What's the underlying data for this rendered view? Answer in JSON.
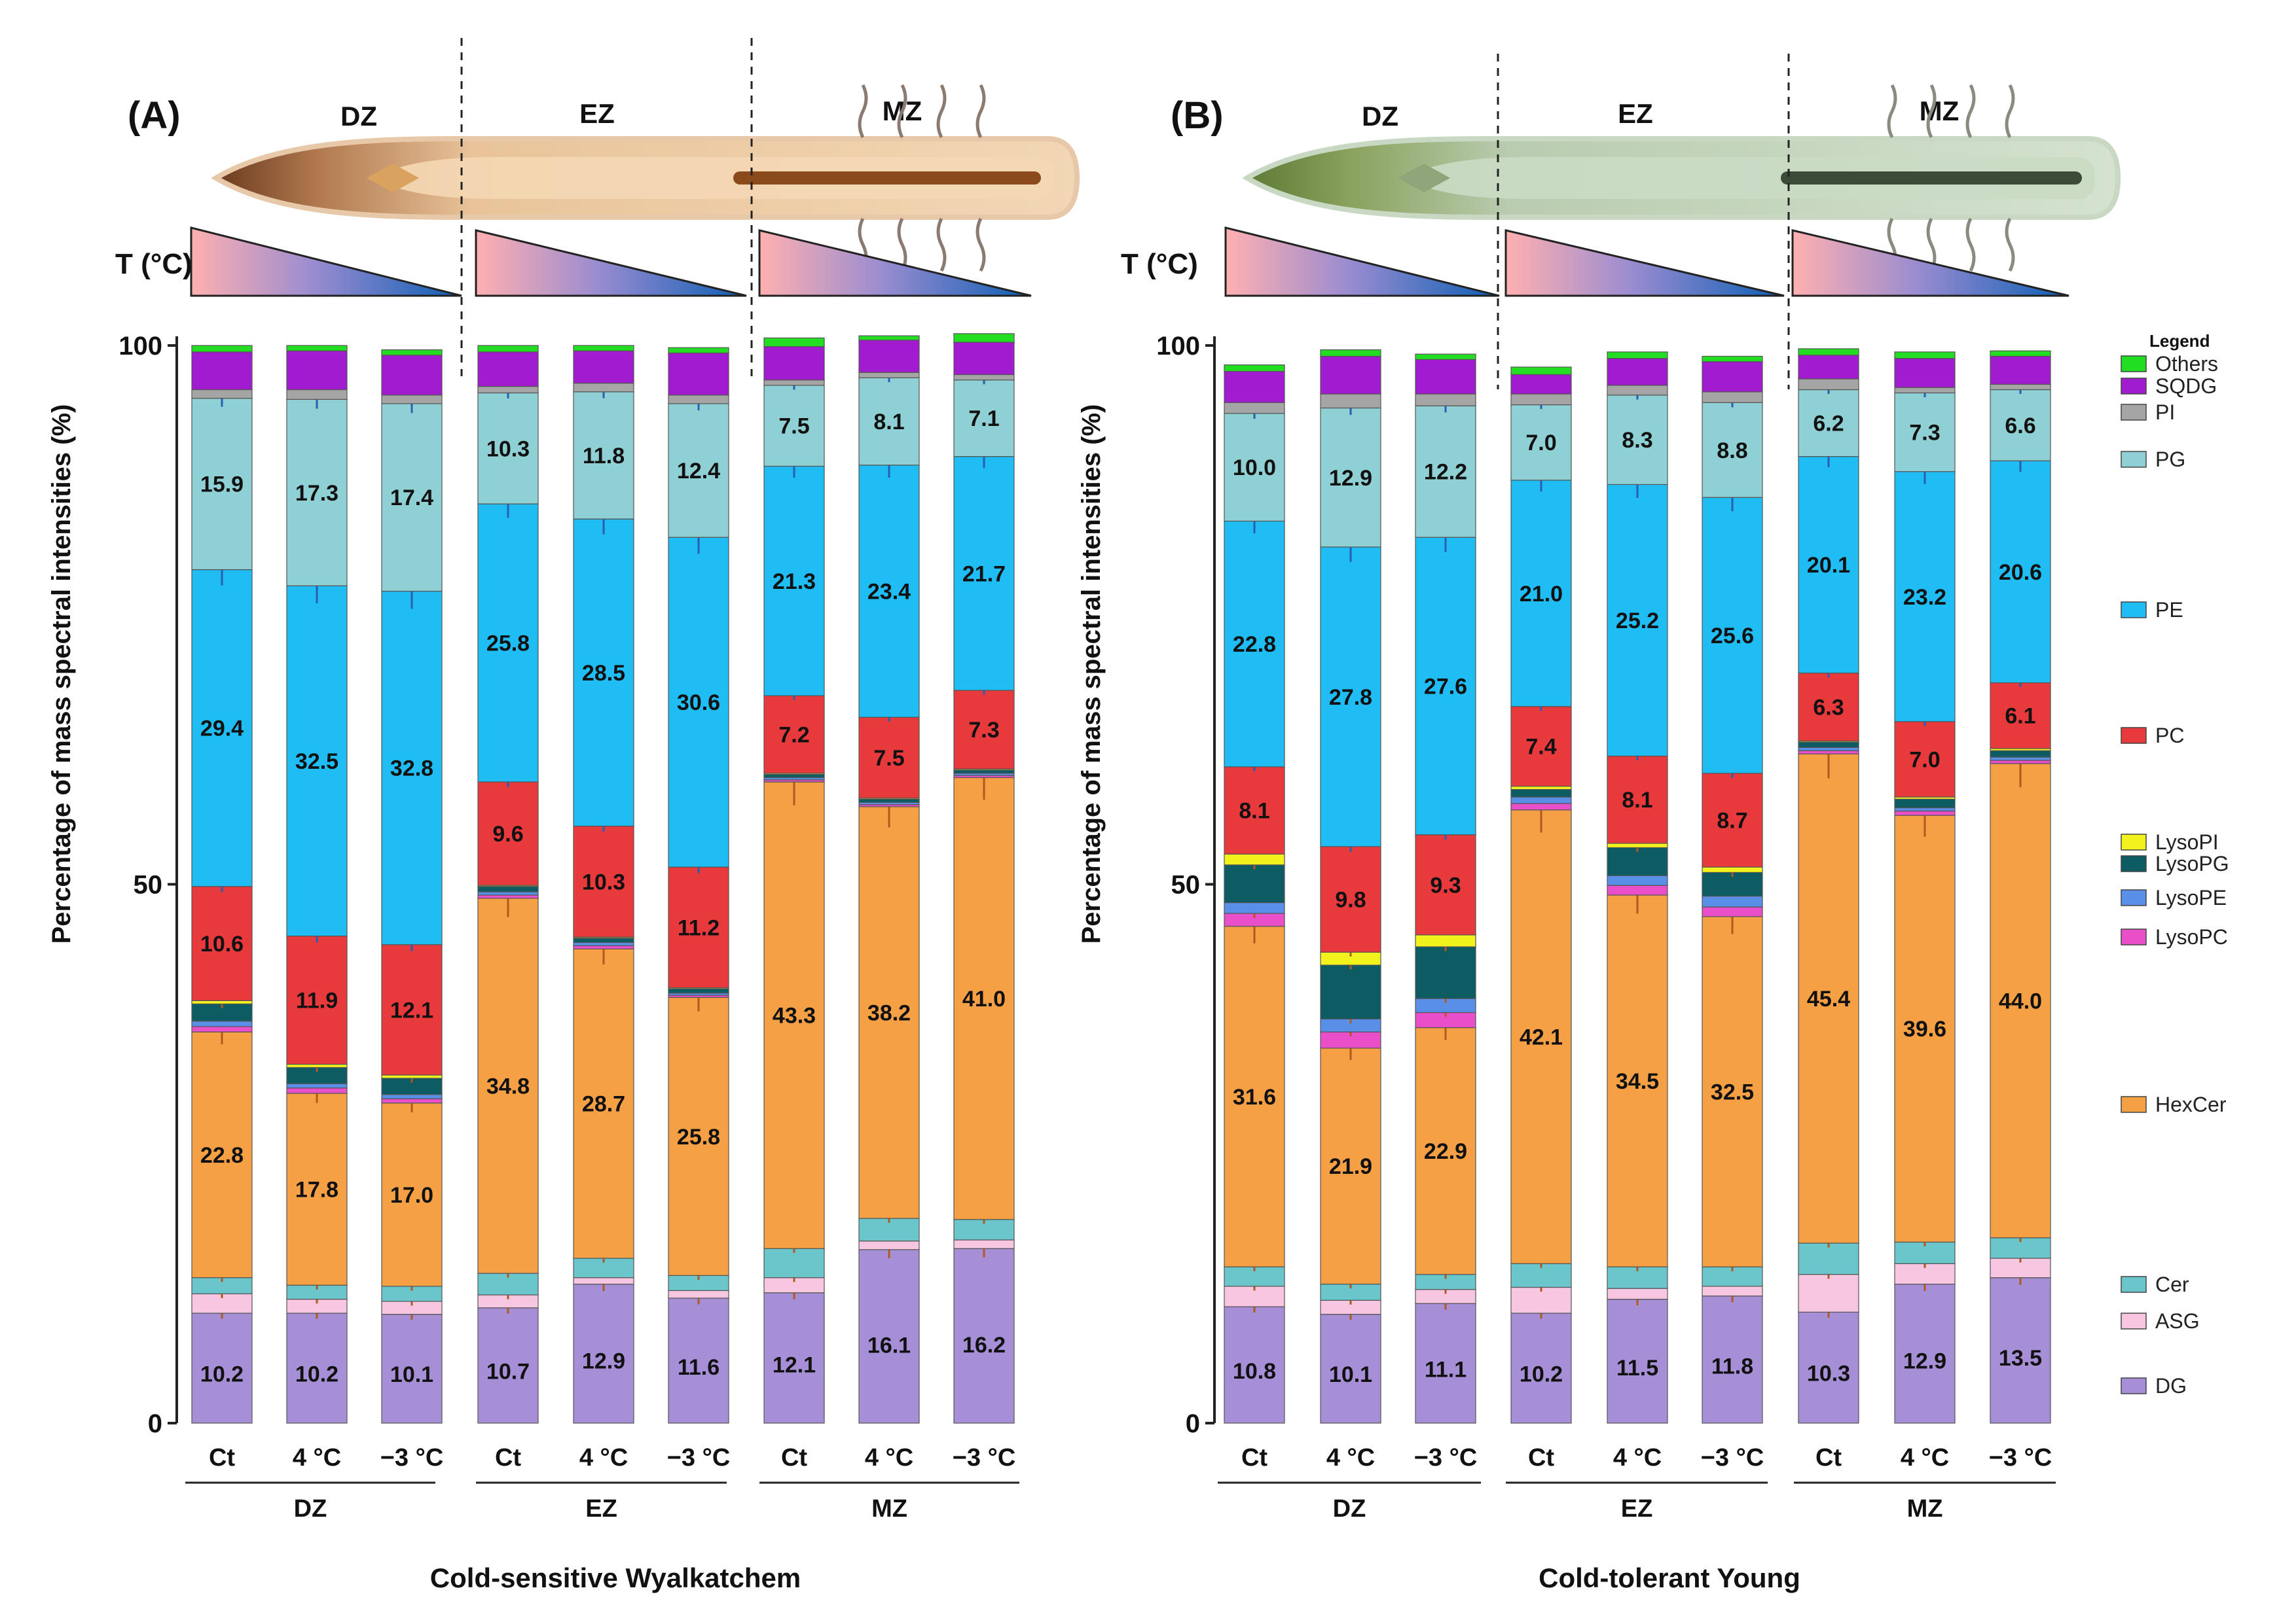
{
  "figure": {
    "y_axis_label": "Percentage of mass spectral intensities (%)",
    "legend_title": "Legend",
    "temperature_label": "T (°C)"
  },
  "colors": {
    "DG": "#a68fd6",
    "ASG": "#f7c6e0",
    "Cer": "#6bc6cc",
    "HexCer": "#f5a044",
    "LysoPC": "#e94fc9",
    "LysoPE": "#5a8fe8",
    "LysoPG": "#0d5b63",
    "LysoPI": "#f2f21c",
    "PC": "#e8393c",
    "PE": "#20bdf5",
    "PG": "#8fd0d4",
    "PI": "#a5a5a5",
    "SQDG": "#a11ccf",
    "Others": "#22dd22",
    "errorbar_light": "#2a5fb0",
    "errorbar_dark": "#b05a1e"
  },
  "legend": [
    {
      "key": "Others",
      "label": "Others"
    },
    {
      "key": "SQDG",
      "label": "SQDG"
    },
    {
      "key": "PI",
      "label": "PI"
    },
    {
      "key": "PG",
      "label": "PG"
    },
    {
      "key": "PE",
      "label": "PE"
    },
    {
      "key": "PC",
      "label": "PC"
    },
    {
      "key": "LysoPI",
      "label": "LysoPI"
    },
    {
      "key": "LysoPG",
      "label": "LysoPG"
    },
    {
      "key": "LysoPE",
      "label": "LysoPE"
    },
    {
      "key": "LysoPC",
      "label": "LysoPC"
    },
    {
      "key": "HexCer",
      "label": "HexCer"
    },
    {
      "key": "Cer",
      "label": "Cer"
    },
    {
      "key": "ASG",
      "label": "ASG"
    },
    {
      "key": "DG",
      "label": "DG"
    }
  ],
  "chart_data": [
    {
      "type": "bar",
      "stacked": true,
      "panel_label": "(A)",
      "subtitle": "Cold-sensitive Wyalkatchem",
      "ylabel": "Percentage of mass spectral intensities (%)",
      "ylim": [
        0,
        100
      ],
      "yticks": [
        "0",
        "50",
        "100"
      ],
      "zones": [
        "DZ",
        "EZ",
        "MZ"
      ],
      "categories": [
        "Ct",
        "4 °C",
        "−3 °C",
        "Ct",
        "4 °C",
        "−3 °C",
        "Ct",
        "4 °C",
        "−3 °C"
      ],
      "series": [
        {
          "name": "DG",
          "values": [
            10.2,
            10.2,
            10.1,
            10.7,
            12.9,
            11.6,
            12.1,
            16.1,
            16.2
          ]
        },
        {
          "name": "ASG",
          "values": [
            1.8,
            1.3,
            1.2,
            1.2,
            0.6,
            0.7,
            1.4,
            0.8,
            0.8
          ]
        },
        {
          "name": "Cer",
          "values": [
            1.5,
            1.3,
            1.4,
            2.0,
            1.8,
            1.4,
            2.7,
            2.1,
            1.9
          ]
        },
        {
          "name": "HexCer",
          "values": [
            22.8,
            17.8,
            17.0,
            34.8,
            28.7,
            25.8,
            43.3,
            38.2,
            41.0
          ]
        },
        {
          "name": "LysoPC",
          "values": [
            0.5,
            0.5,
            0.4,
            0.3,
            0.3,
            0.2,
            0.2,
            0.2,
            0.2
          ]
        },
        {
          "name": "LysoPE",
          "values": [
            0.5,
            0.4,
            0.4,
            0.3,
            0.3,
            0.2,
            0.2,
            0.2,
            0.2
          ]
        },
        {
          "name": "LysoPG",
          "values": [
            1.6,
            1.5,
            1.5,
            0.5,
            0.4,
            0.4,
            0.3,
            0.3,
            0.3
          ]
        },
        {
          "name": "LysoPI",
          "values": [
            0.3,
            0.3,
            0.3,
            0.1,
            0.1,
            0.1,
            0.1,
            0.1,
            0.1
          ]
        },
        {
          "name": "PC",
          "values": [
            10.6,
            11.9,
            12.1,
            9.6,
            10.3,
            11.2,
            7.2,
            7.5,
            7.3
          ]
        },
        {
          "name": "PE",
          "values": [
            29.4,
            32.5,
            32.8,
            25.8,
            28.5,
            30.6,
            21.3,
            23.4,
            21.7
          ]
        },
        {
          "name": "PG",
          "values": [
            15.9,
            17.3,
            17.4,
            10.3,
            11.8,
            12.4,
            7.5,
            8.1,
            7.1
          ]
        },
        {
          "name": "PI",
          "values": [
            0.8,
            0.9,
            0.8,
            0.6,
            0.8,
            0.8,
            0.5,
            0.5,
            0.5
          ]
        },
        {
          "name": "SQDG",
          "values": [
            3.5,
            3.6,
            3.7,
            3.2,
            3.0,
            3.9,
            3.1,
            3.0,
            3.0
          ]
        },
        {
          "name": "Others",
          "values": [
            0.6,
            0.5,
            0.5,
            0.6,
            0.5,
            0.5,
            0.8,
            0.4,
            0.8
          ]
        }
      ],
      "value_labels": [
        "DG",
        "HexCer",
        "PC",
        "PE",
        "PG"
      ]
    },
    {
      "type": "bar",
      "stacked": true,
      "panel_label": "(B)",
      "subtitle": "Cold-tolerant Young",
      "ylabel": "Percentage of mass spectral intensities (%)",
      "ylim": [
        0,
        100
      ],
      "yticks": [
        "0",
        "50",
        "100"
      ],
      "zones": [
        "DZ",
        "EZ",
        "MZ"
      ],
      "categories": [
        "Ct",
        "4 °C",
        "−3 °C",
        "Ct",
        "4 °C",
        "−3 °C",
        "Ct",
        "4 °C",
        "−3 °C"
      ],
      "series": [
        {
          "name": "DG",
          "values": [
            10.8,
            10.1,
            11.1,
            10.2,
            11.5,
            11.8,
            10.3,
            12.9,
            13.5
          ]
        },
        {
          "name": "ASG",
          "values": [
            1.9,
            1.3,
            1.3,
            2.4,
            1.0,
            0.9,
            3.5,
            1.9,
            1.8
          ]
        },
        {
          "name": "Cer",
          "values": [
            1.8,
            1.5,
            1.4,
            2.2,
            2.0,
            1.8,
            2.9,
            2.0,
            1.9
          ]
        },
        {
          "name": "HexCer",
          "values": [
            31.6,
            21.9,
            22.9,
            42.1,
            34.5,
            32.5,
            45.4,
            39.6,
            44.0
          ]
        },
        {
          "name": "LysoPC",
          "values": [
            1.2,
            1.5,
            1.4,
            0.6,
            0.9,
            0.9,
            0.3,
            0.4,
            0.3
          ]
        },
        {
          "name": "LysoPE",
          "values": [
            1.0,
            1.2,
            1.3,
            0.6,
            0.9,
            1.0,
            0.3,
            0.3,
            0.3
          ]
        },
        {
          "name": "LysoPG",
          "values": [
            3.5,
            5.0,
            4.8,
            0.7,
            2.6,
            2.2,
            0.5,
            0.8,
            0.6
          ]
        },
        {
          "name": "LysoPI",
          "values": [
            1.0,
            1.2,
            1.1,
            0.3,
            0.4,
            0.5,
            0.1,
            0.2,
            0.2
          ]
        },
        {
          "name": "PC",
          "values": [
            8.1,
            9.8,
            9.3,
            7.4,
            8.1,
            8.7,
            6.3,
            7.0,
            6.1
          ]
        },
        {
          "name": "PE",
          "values": [
            22.8,
            27.8,
            27.6,
            21.0,
            25.2,
            25.6,
            20.1,
            23.2,
            20.6
          ]
        },
        {
          "name": "PG",
          "values": [
            10.0,
            12.9,
            12.2,
            7.0,
            8.3,
            8.8,
            6.2,
            7.3,
            6.6
          ]
        },
        {
          "name": "PI",
          "values": [
            1.0,
            1.3,
            1.1,
            1.0,
            0.9,
            1.0,
            1.0,
            0.5,
            0.5
          ]
        },
        {
          "name": "SQDG",
          "values": [
            2.9,
            3.5,
            3.2,
            1.8,
            2.5,
            2.8,
            2.2,
            2.7,
            2.6
          ]
        },
        {
          "name": "Others",
          "values": [
            0.6,
            0.6,
            0.5,
            0.7,
            0.6,
            0.5,
            0.6,
            0.6,
            0.5
          ]
        }
      ],
      "value_labels": [
        "DG",
        "HexCer",
        "PC",
        "PE",
        "PG"
      ]
    }
  ]
}
